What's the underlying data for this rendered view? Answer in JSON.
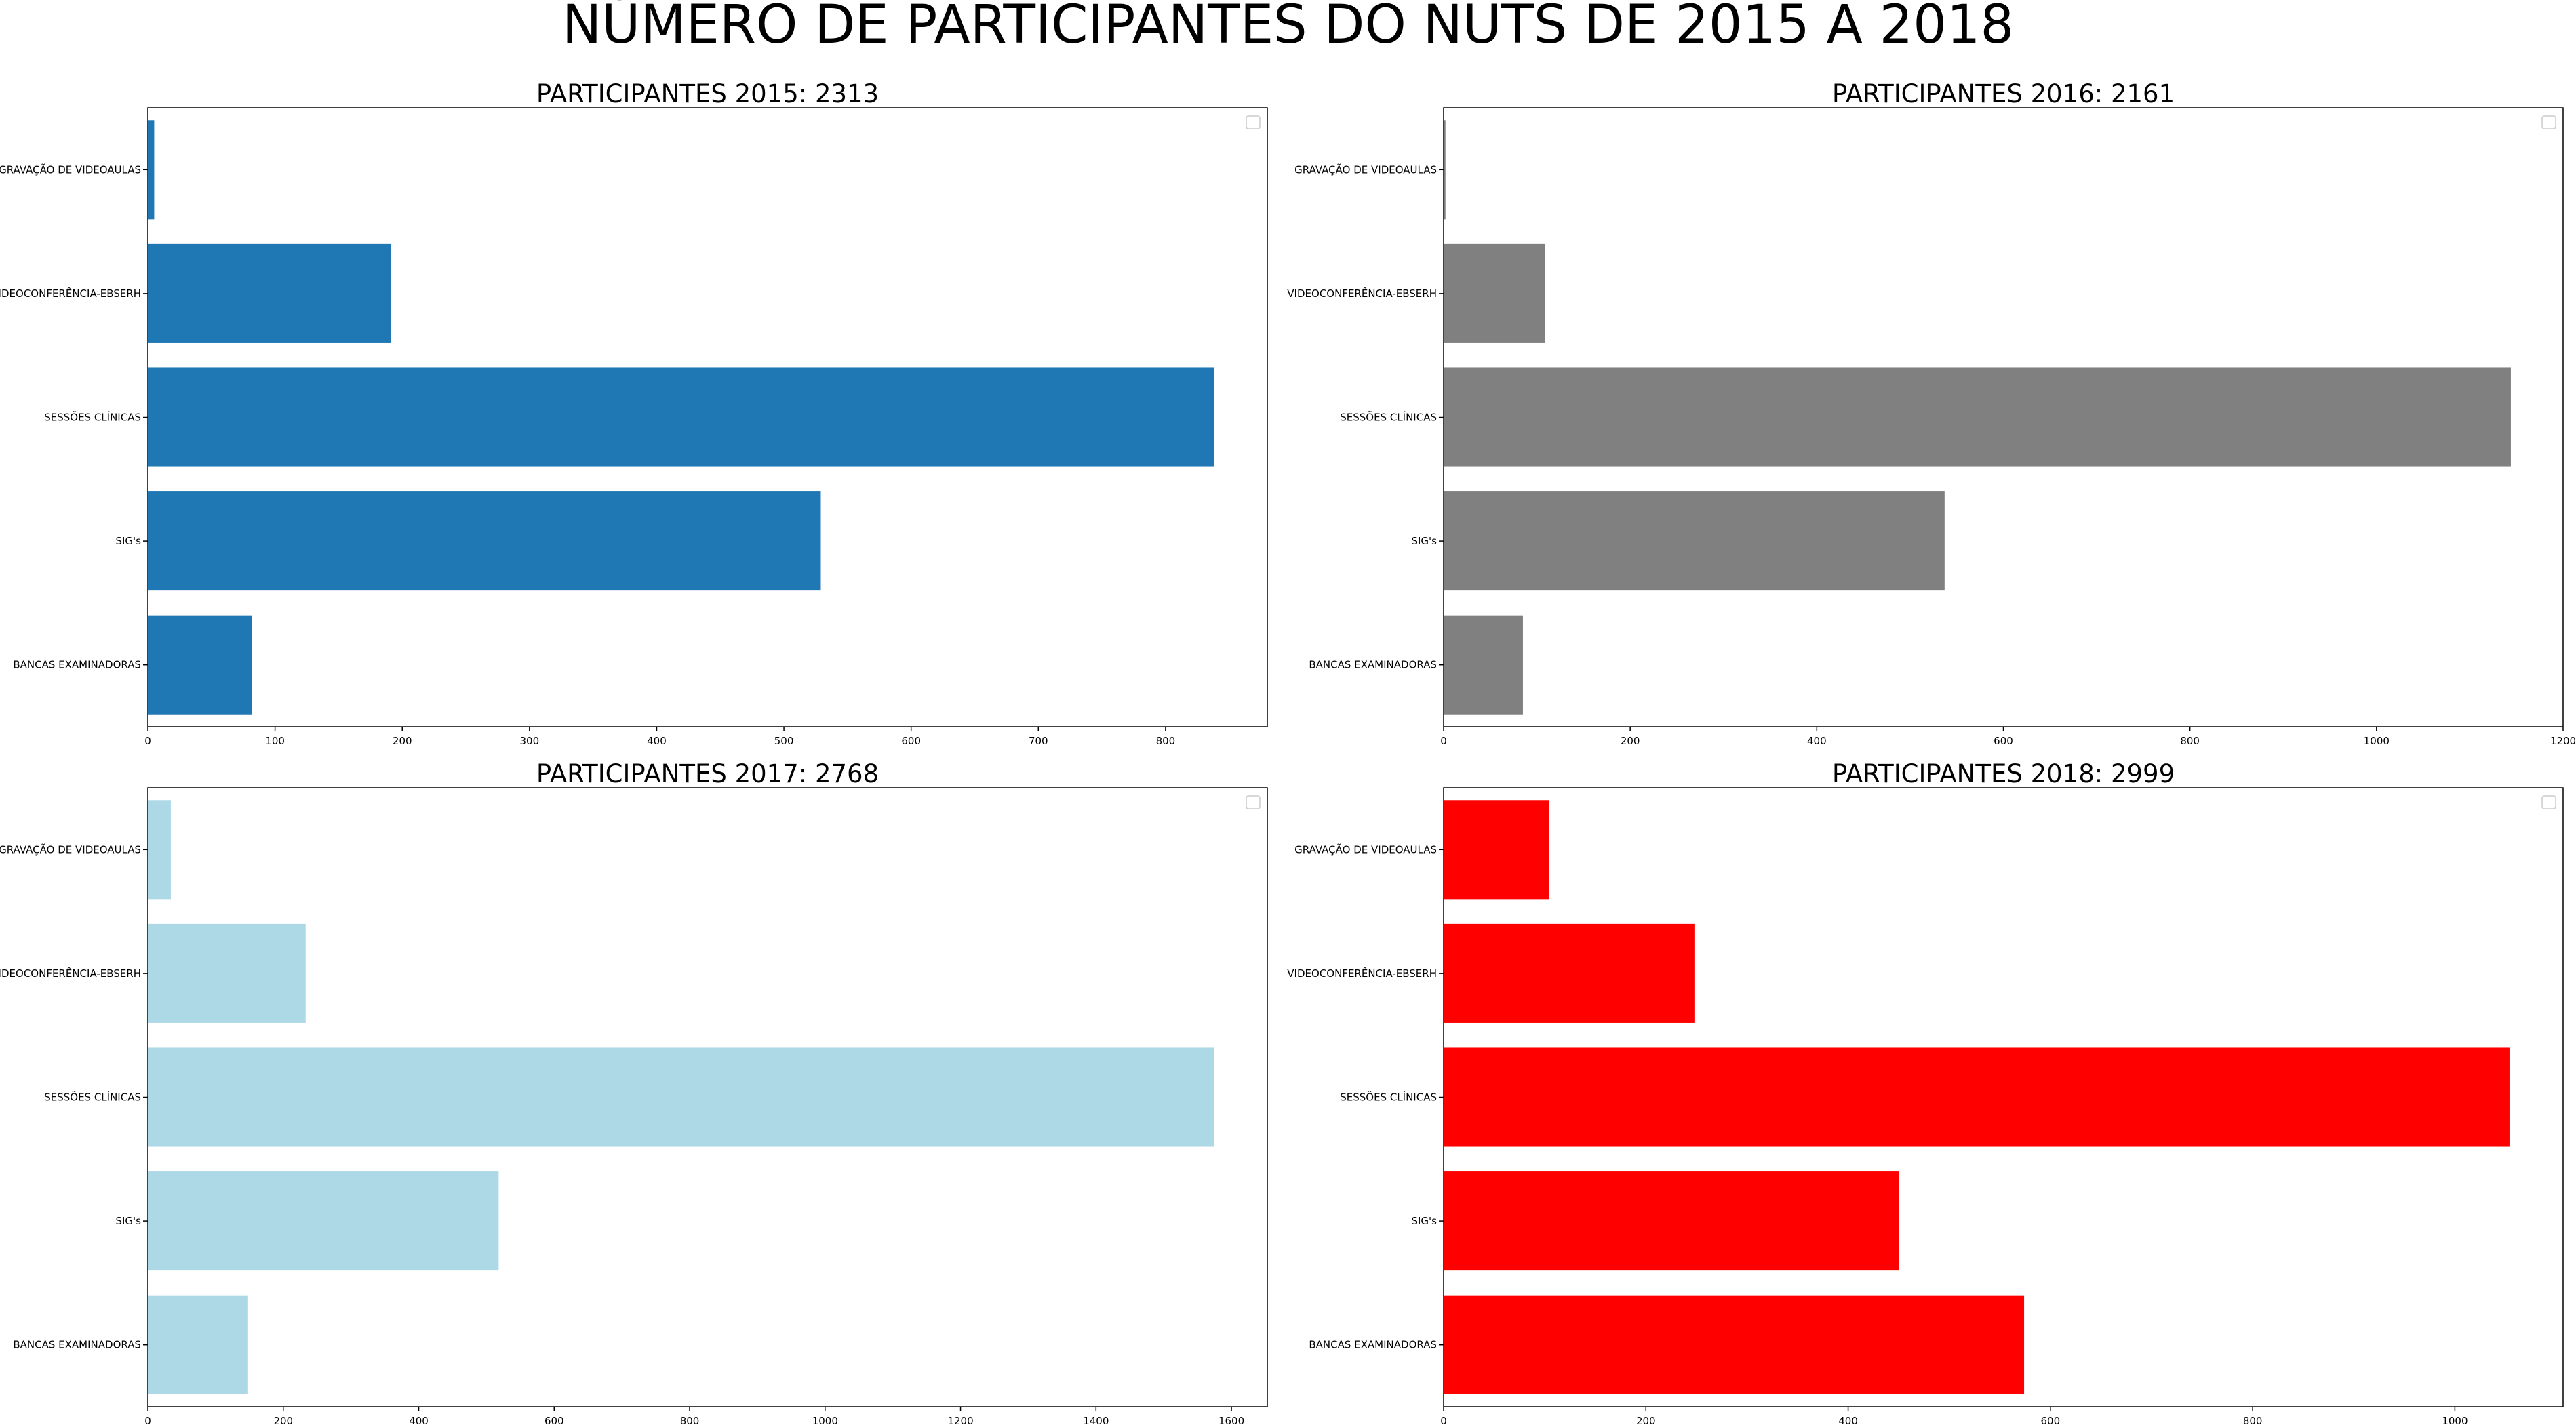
{
  "title": "NÚMERO DE PARTICIPANTES DO NUTS DE 2015 A 2018",
  "chart_data": [
    {
      "type": "bar",
      "orientation": "horizontal",
      "title": "PARTICIPANTES 2015: 2313",
      "categories": [
        "GRAVAÇÃO DE VIDEOAULAS",
        "VIDEOCONFERÊNCIA-EBSERH",
        "SESSÕES CLÍNICAS",
        "SIG's",
        "BANCAS EXAMINADORAS"
      ],
      "values": [
        5,
        191,
        838,
        529,
        82
      ],
      "xlim": [
        0,
        880
      ],
      "xticks": [
        0,
        100,
        200,
        300,
        400,
        500,
        600,
        700,
        800
      ],
      "color": "#1f77b4",
      "legend": "upper right"
    },
    {
      "type": "bar",
      "orientation": "horizontal",
      "title": "PARTICIPANTES 2016: 2161",
      "categories": [
        "GRAVAÇÃO DE VIDEOAULAS",
        "VIDEOCONFERÊNCIA-EBSERH",
        "SESSÕES CLÍNICAS",
        "SIG's",
        "BANCAS EXAMINADORAS"
      ],
      "values": [
        2,
        109,
        1144,
        537,
        85
      ],
      "xlim": [
        0,
        1200
      ],
      "xticks": [
        0,
        200,
        400,
        600,
        800,
        1000,
        1200
      ],
      "color": "#808080",
      "legend": "upper right"
    },
    {
      "type": "bar",
      "orientation": "horizontal",
      "title": "PARTICIPANTES 2017: 2768",
      "categories": [
        "GRAVAÇÃO DE VIDEOAULAS",
        "VIDEOCONFERÊNCIA-EBSERH",
        "SESSÕES CLÍNICAS",
        "SIG's",
        "BANCAS EXAMINADORAS"
      ],
      "values": [
        34,
        233,
        1574,
        518,
        148
      ],
      "xlim": [
        0,
        1653
      ],
      "xticks": [
        0,
        200,
        400,
        600,
        800,
        1000,
        1200,
        1400,
        1600
      ],
      "color": "#add8e6",
      "legend": "upper right"
    },
    {
      "type": "bar",
      "orientation": "horizontal",
      "title": "PARTICIPANTES 2018: 2999",
      "categories": [
        "GRAVAÇÃO DE VIDEOAULAS",
        "VIDEOCONFERÊNCIA-EBSERH",
        "SESSÕES CLÍNICAS",
        "SIG's",
        "BANCAS EXAMINADORAS"
      ],
      "values": [
        104,
        248,
        1054,
        450,
        574
      ],
      "xlim": [
        0,
        1107
      ],
      "xticks": [
        0,
        200,
        400,
        600,
        800,
        1000
      ],
      "color": "#ff0000",
      "legend": "upper right"
    }
  ]
}
